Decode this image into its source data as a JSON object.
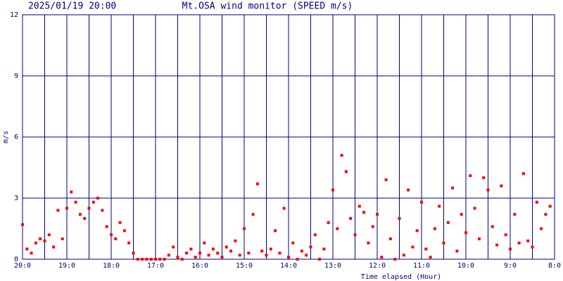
{
  "chart_data": {
    "type": "scatter",
    "header_left": "2025/01/19 20:00",
    "title": "Mt.OSA wind monitor (SPEED m/s)",
    "y_label": "m/s",
    "x_label": "Time elapsed (Hour)",
    "color": "#ff0000",
    "grid_color": "#000080",
    "grid": true,
    "xlim": [
      0,
      12
    ],
    "xticks": [
      {
        "value": 0,
        "label": "20:0"
      },
      {
        "value": 1,
        "label": "19:0"
      },
      {
        "value": 2,
        "label": "18:0"
      },
      {
        "value": 3,
        "label": "17:0"
      },
      {
        "value": 4,
        "label": "16:0"
      },
      {
        "value": 5,
        "label": "15:0"
      },
      {
        "value": 6,
        "label": "14:0"
      },
      {
        "value": 7,
        "label": "13:0"
      },
      {
        "value": 8,
        "label": "12:0"
      },
      {
        "value": 9,
        "label": "11:0"
      },
      {
        "value": 10,
        "label": "10:0"
      },
      {
        "value": 11,
        "label": "9:0"
      },
      {
        "value": 12,
        "label": "8:0"
      }
    ],
    "minor_xticks": [
      0.5,
      1.5,
      2.5,
      3.5,
      4.5,
      5.5,
      6.5,
      7.5,
      8.5,
      9.5,
      10.5,
      11.5
    ],
    "ylim": [
      0,
      12
    ],
    "yticks": [
      0,
      3,
      6,
      9,
      12
    ],
    "x": [
      0,
      0.1,
      0.2,
      0.3,
      0.4,
      0.5,
      0.6,
      0.7,
      0.8,
      0.9,
      1,
      1.1,
      1.2,
      1.3,
      1.4,
      1.5,
      1.6,
      1.7,
      1.8,
      1.9,
      2,
      2.1,
      2.2,
      2.3,
      2.4,
      2.5,
      2.6,
      2.7,
      2.8,
      2.9,
      3,
      3.1,
      3.2,
      3.3,
      3.4,
      3.5,
      3.6,
      3.7,
      3.8,
      3.9,
      4,
      4.1,
      4.2,
      4.3,
      4.4,
      4.5,
      4.6,
      4.7,
      4.8,
      4.9,
      5,
      5.1,
      5.2,
      5.3,
      5.4,
      5.5,
      5.6,
      5.7,
      5.8,
      5.9,
      6,
      6.1,
      6.2,
      6.3,
      6.4,
      6.5,
      6.6,
      6.7,
      6.8,
      6.9,
      7,
      7.1,
      7.2,
      7.3,
      7.4,
      7.5,
      7.6,
      7.7,
      7.8,
      7.9,
      8,
      8.1,
      8.2,
      8.3,
      8.4,
      8.5,
      8.6,
      8.7,
      8.8,
      8.9,
      9,
      9.1,
      9.2,
      9.3,
      9.4,
      9.5,
      9.6,
      9.7,
      9.8,
      9.9,
      10,
      10.1,
      10.2,
      10.3,
      10.4,
      10.5,
      10.6,
      10.7,
      10.8,
      10.9,
      11,
      11.1,
      11.2,
      11.3,
      11.4,
      11.5,
      11.6,
      11.7,
      11.8,
      11.9
    ],
    "values": [
      1.7,
      0.5,
      0.3,
      0.8,
      1.0,
      0.9,
      1.2,
      0.6,
      2.4,
      1.0,
      2.5,
      3.3,
      2.8,
      2.2,
      2.0,
      2.5,
      2.8,
      3.0,
      2.4,
      1.6,
      1.2,
      1.0,
      1.8,
      1.4,
      0.8,
      0.3,
      0,
      0,
      0,
      0,
      0,
      0,
      0,
      0.2,
      0.6,
      0.1,
      0,
      0.3,
      0.5,
      0.1,
      0.3,
      0.8,
      0.2,
      0.5,
      0.3,
      0.1,
      0.6,
      0.4,
      0.9,
      0.2,
      1.5,
      0.3,
      2.2,
      3.7,
      0.4,
      0.2,
      0.5,
      1.4,
      0.3,
      2.5,
      0.1,
      0.8,
      0,
      0.4,
      0.2,
      0.6,
      1.2,
      0,
      0.5,
      1.8,
      3.4,
      1.5,
      5.1,
      4.3,
      2.0,
      1.2,
      2.6,
      2.3,
      0.8,
      1.6,
      2.2,
      0.1,
      3.9,
      1.0,
      0,
      2.0,
      0.2,
      3.4,
      0.6,
      1.4,
      2.8,
      0.5,
      0.1,
      1.5,
      2.6,
      0.8,
      1.8,
      3.5,
      0.4,
      2.2,
      1.3,
      4.1,
      2.5,
      1.0,
      4.0,
      3.4,
      1.6,
      0.7,
      3.6,
      1.2,
      0.5,
      2.2,
      0.8,
      4.2,
      0.9,
      0.6,
      2.8,
      1.5,
      2.2,
      2.6
    ]
  }
}
